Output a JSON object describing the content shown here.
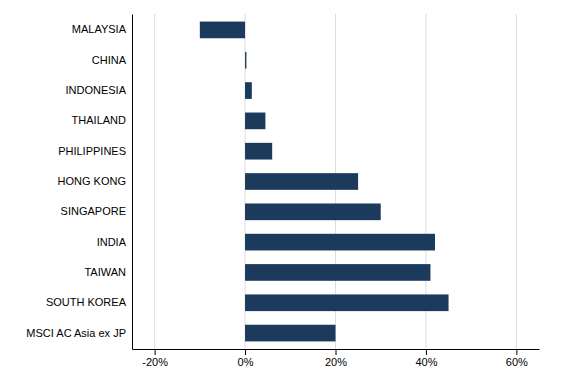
{
  "chart_data": {
    "type": "bar",
    "orientation": "horizontal",
    "categories": [
      "MALAYSIA",
      "CHINA",
      "INDONESIA",
      "THAILAND",
      "PHILIPPINES",
      "HONG KONG",
      "SINGAPORE",
      "INDIA",
      "TAIWAN",
      "SOUTH KOREA",
      "MSCI AC Asia ex JP"
    ],
    "values": [
      -10.0,
      0.3,
      1.5,
      4.5,
      6.0,
      25.0,
      30.0,
      42.0,
      41.0,
      45.0,
      20.0
    ],
    "color": "#1b3a5c",
    "xlim": [
      -25,
      65
    ],
    "xticks": [
      {
        "value": -20,
        "label": "-20%"
      },
      {
        "value": 0,
        "label": "0%"
      },
      {
        "value": 20,
        "label": "20%"
      },
      {
        "value": 40,
        "label": "40%"
      },
      {
        "value": 60,
        "label": "60%"
      }
    ],
    "grid": true
  }
}
